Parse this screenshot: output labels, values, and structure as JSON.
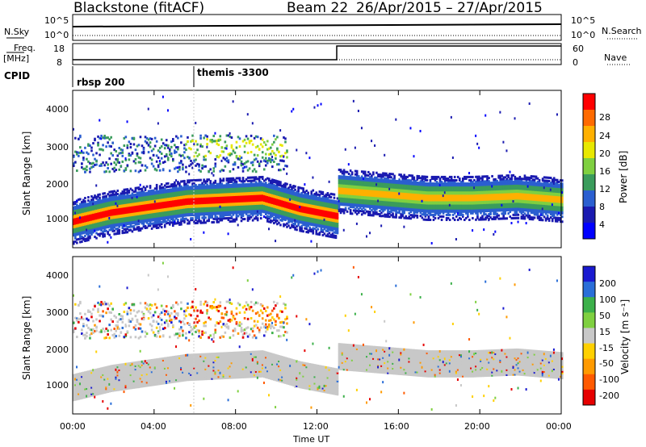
{
  "header": {
    "station": "Blackstone (fitACF)",
    "beam": "Beam 22",
    "dates": "26/Apr/2015 – 27/Apr/2015"
  },
  "panels": {
    "nsky_label": "N.Sky",
    "nsky_top": "10^5",
    "nsky_bottom": "10^0",
    "nsearch_label": "N.Search",
    "nsearch_top": "10^5",
    "nsearch_bottom": "10^0",
    "freq_label": "Freq.",
    "freq_unit": "[MHz]",
    "freq_top": "18",
    "freq_bottom": "8",
    "nave_label": "Nave",
    "nave_top": "60",
    "nave_bottom": "0",
    "cpid_label": "CPID",
    "cpid_1": "rbsp 200",
    "cpid_2": "themis -3300"
  },
  "colorbar_power": {
    "label": "Power [dB]",
    "ticks": [
      "28",
      "24",
      "20",
      "16",
      "12",
      "8",
      "4"
    ],
    "colors": [
      "#ff0000",
      "#ff6a00",
      "#ffb000",
      "#e8e800",
      "#7fd040",
      "#3a9c5c",
      "#2b5fd0",
      "#1a1ab0",
      "#0000ff"
    ]
  },
  "colorbar_velocity": {
    "label": "Velocity [m s⁻¹]",
    "ticks": [
      "200",
      "100",
      "50",
      "15",
      "-15",
      "-50",
      "-100",
      "-200"
    ],
    "colors": [
      "#1a1ad0",
      "#2a6ed8",
      "#3cb04a",
      "#7fd040",
      "#c8c8c8",
      "#ffd000",
      "#ff9a00",
      "#ff5a00",
      "#e60000"
    ]
  },
  "chart_data": [
    {
      "type": "heatmap",
      "title": "Power",
      "xlabel": "",
      "ylabel": "Slant Range [km]",
      "xlim": [
        "00:00",
        "24:00"
      ],
      "ylim": [
        200,
        4500
      ],
      "yticks": [
        "1000",
        "2000",
        "3000",
        "4000"
      ],
      "colorbar": "Power [dB]",
      "bands": [
        {
          "from_hr": 0,
          "to_hr": 13,
          "center_km": [
            900,
            1150,
            1300,
            1450,
            1500,
            1550,
            1250,
            1050
          ],
          "level": "high"
        },
        {
          "from_hr": 13,
          "to_hr": 24,
          "center_km": [
            1750,
            1650,
            1550,
            1550,
            1600,
            1500
          ],
          "level": "medium"
        }
      ]
    },
    {
      "type": "heatmap",
      "title": "Velocity",
      "xlabel": "Time UT",
      "ylabel": "Slant Range [km]",
      "xlim": [
        "00:00",
        "24:00"
      ],
      "ylim": [
        200,
        4500
      ],
      "xticks": [
        "00:00",
        "04:00",
        "08:00",
        "12:00",
        "16:00",
        "20:00",
        "00:00"
      ],
      "yticks": [
        "1000",
        "2000",
        "3000",
        "4000"
      ],
      "colorbar": "Velocity [m s⁻¹]"
    }
  ],
  "axis": {
    "xlabel": "Time UT",
    "ylabel_top": "Slant Range [km]",
    "ylabel_bottom": "Slant Range [km]",
    "xticks": [
      "00:00",
      "04:00",
      "08:00",
      "12:00",
      "16:00",
      "20:00",
      "00:00"
    ],
    "yticks": [
      "1000",
      "2000",
      "3000",
      "4000"
    ]
  }
}
